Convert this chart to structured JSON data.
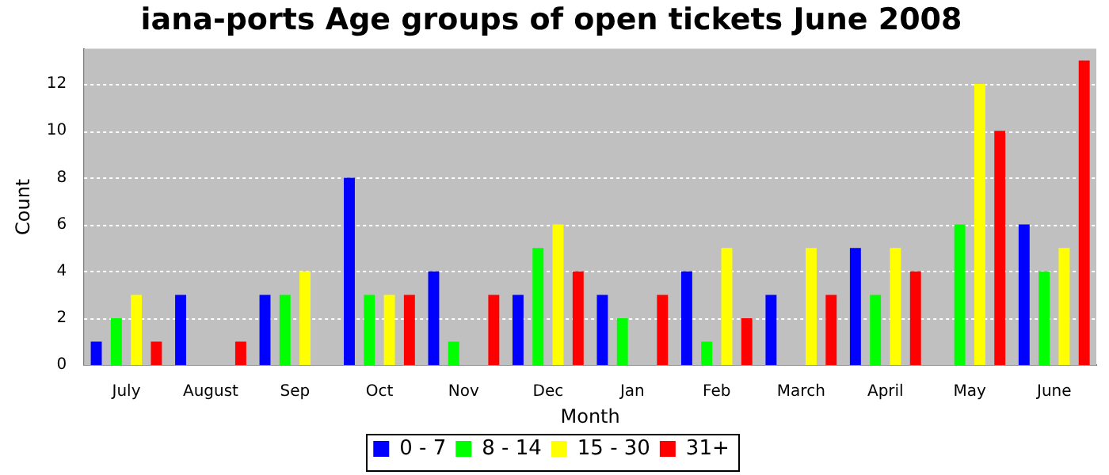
{
  "chart_data": {
    "type": "bar",
    "title": "iana-ports Age groups of open tickets June 2008",
    "xlabel": "Month",
    "ylabel": "Count",
    "categories": [
      "July",
      "August",
      "Sep",
      "Oct",
      "Nov",
      "Dec",
      "Jan",
      "Feb",
      "March",
      "April",
      "May",
      "June"
    ],
    "series": [
      {
        "name": "0 - 7",
        "color": "#0000ff",
        "values": [
          1,
          3,
          3,
          8,
          4,
          3,
          3,
          4,
          3,
          5,
          0,
          6
        ]
      },
      {
        "name": "8 - 14",
        "color": "#00ff00",
        "values": [
          2,
          0,
          3,
          3,
          1,
          5,
          2,
          1,
          0,
          3,
          6,
          4
        ]
      },
      {
        "name": "15 - 30",
        "color": "#ffff00",
        "values": [
          3,
          0,
          4,
          3,
          0,
          6,
          0,
          5,
          5,
          5,
          12,
          5
        ]
      },
      {
        "name": "31+",
        "color": "#ff0000",
        "values": [
          1,
          1,
          0,
          3,
          3,
          4,
          3,
          2,
          3,
          4,
          10,
          13
        ]
      }
    ],
    "ylim": [
      0,
      13.5
    ],
    "yticks": [
      0,
      2,
      4,
      6,
      8,
      10,
      12
    ],
    "grid": "y",
    "legend": "bottom"
  }
}
